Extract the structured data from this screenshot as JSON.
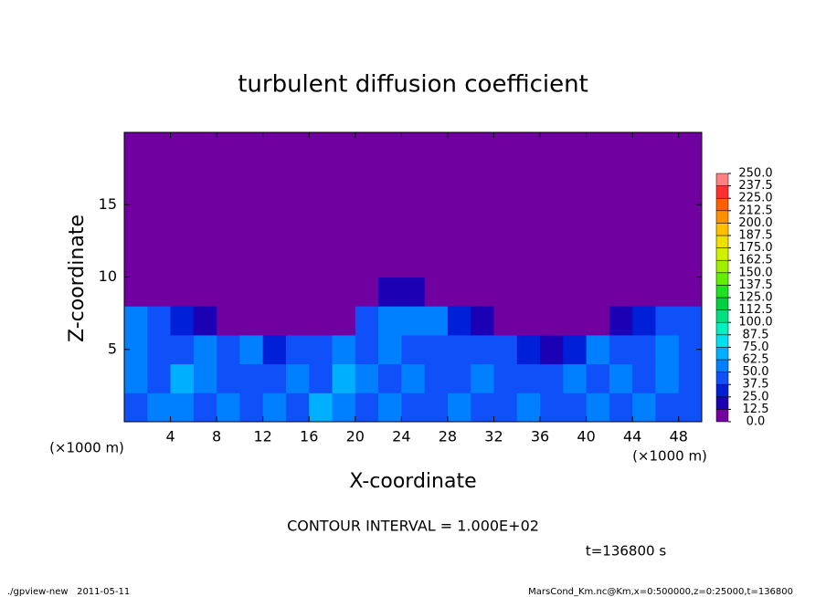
{
  "chart_data": {
    "type": "heatmap",
    "title": "turbulent diffusion coefficient",
    "x_label": "X-coordinate",
    "y_label": "Z-coordinate",
    "x_unit_label": "(×1000 m)",
    "y_unit_label": "(×1000 m)",
    "annotation": "CONTOUR INTERVAL = 1.000E+02",
    "time_label": "t=136800 s",
    "footer_left": "./gpview-new   2011-05-11",
    "footer_right": "MarsCond_Km.nc@Km,x=0:500000,z=0:25000,t=136800",
    "xlim": [
      0,
      50
    ],
    "ylim": [
      0,
      20
    ],
    "xticks": [
      4,
      8,
      12,
      16,
      20,
      24,
      28,
      32,
      36,
      40,
      44,
      48
    ],
    "yticks": [
      5,
      10,
      15
    ],
    "x": [
      1,
      3,
      5,
      7,
      9,
      11,
      13,
      15,
      17,
      19,
      21,
      23,
      25,
      27,
      29,
      31,
      33,
      35,
      37,
      39,
      41,
      43,
      45,
      47,
      49
    ],
    "y": [
      1,
      3,
      5,
      7,
      9,
      11,
      13,
      15,
      17,
      19
    ],
    "z": [
      [
        37.5,
        50,
        50,
        37.5,
        50,
        37.5,
        50,
        37.5,
        62.5,
        50,
        37.5,
        50,
        37.5,
        37.5,
        50,
        37.5,
        37.5,
        50,
        37.5,
        37.5,
        50,
        37.5,
        50,
        37.5,
        37.5
      ],
      [
        50,
        37.5,
        62.5,
        50,
        37.5,
        37.5,
        37.5,
        50,
        37.5,
        62.5,
        50,
        37.5,
        50,
        37.5,
        37.5,
        50,
        37.5,
        37.5,
        37.5,
        50,
        37.5,
        50,
        37.5,
        50,
        37.5
      ],
      [
        50,
        37.5,
        37.5,
        50,
        37.5,
        50,
        25,
        37.5,
        37.5,
        50,
        37.5,
        50,
        37.5,
        37.5,
        37.5,
        37.5,
        37.5,
        25,
        12.5,
        25,
        50,
        37.5,
        37.5,
        50,
        37.5
      ],
      [
        50,
        37.5,
        25,
        12.5,
        0,
        0,
        0,
        0,
        0,
        0,
        37.5,
        50,
        50,
        50,
        25,
        12.5,
        0,
        0,
        0,
        0,
        0,
        12.5,
        25,
        37.5,
        37.5
      ],
      [
        0,
        0,
        0,
        0,
        0,
        0,
        0,
        0,
        0,
        0,
        0,
        12.5,
        12.5,
        0,
        0,
        0,
        0,
        0,
        0,
        0,
        0,
        0,
        0,
        0,
        0
      ],
      [
        0,
        0,
        0,
        0,
        0,
        0,
        0,
        0,
        0,
        0,
        0,
        0,
        0,
        0,
        0,
        0,
        0,
        0,
        0,
        0,
        0,
        0,
        0,
        0,
        0
      ],
      [
        0,
        0,
        0,
        0,
        0,
        0,
        0,
        0,
        0,
        0,
        0,
        0,
        0,
        0,
        0,
        0,
        0,
        0,
        0,
        0,
        0,
        0,
        0,
        0,
        0
      ],
      [
        0,
        0,
        0,
        0,
        0,
        0,
        0,
        0,
        0,
        0,
        0,
        0,
        0,
        0,
        0,
        0,
        0,
        0,
        0,
        0,
        0,
        0,
        0,
        0,
        0
      ],
      [
        0,
        0,
        0,
        0,
        0,
        0,
        0,
        0,
        0,
        0,
        0,
        0,
        0,
        0,
        0,
        0,
        0,
        0,
        0,
        0,
        0,
        0,
        0,
        0,
        0
      ],
      [
        0,
        0,
        0,
        0,
        0,
        0,
        0,
        0,
        0,
        0,
        0,
        0,
        0,
        0,
        0,
        0,
        0,
        0,
        0,
        0,
        0,
        0,
        0,
        0,
        0
      ]
    ],
    "colorbar_ticks": [
      {
        "value": 0,
        "label": "0.0"
      },
      12.5,
      {
        "value": 25,
        "label": "25.0"
      },
      37.5,
      {
        "value": 50,
        "label": "50.0"
      },
      62.5,
      {
        "value": 75,
        "label": "75.0"
      },
      87.5,
      {
        "value": 100,
        "label": "100.0"
      },
      112.5,
      {
        "value": 125,
        "label": "125.0"
      },
      137.5,
      {
        "value": 150,
        "label": "150.0"
      },
      162.5,
      {
        "value": 175,
        "label": "175.0"
      },
      187.5,
      {
        "value": 200,
        "label": "200.0"
      },
      212.5,
      {
        "value": 225,
        "label": "225.0"
      },
      237.5,
      {
        "value": 250,
        "label": "250.0"
      }
    ],
    "colors": [
      "#7000a0",
      "#1c00b4",
      "#0020d8",
      "#1050f8",
      "#0080ff",
      "#00b0ff",
      "#00e0f0",
      "#00f0c0",
      "#00e080",
      "#00d040",
      "#20e020",
      "#60f000",
      "#a0f000",
      "#d0f000",
      "#f0e000",
      "#ffc000",
      "#ff9000",
      "#ff6000",
      "#ff3030",
      "#ff8080"
    ]
  }
}
